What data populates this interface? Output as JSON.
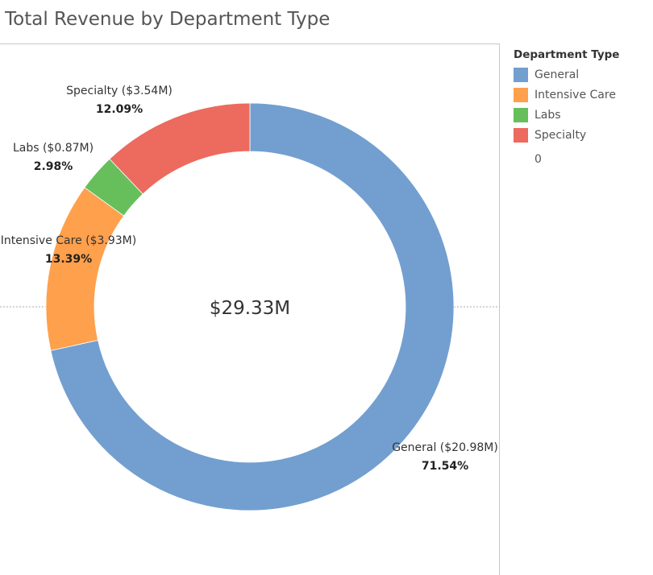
{
  "title": "Total Revenue by Department Type",
  "legend": {
    "title": "Department Type",
    "extra": "0"
  },
  "chart_data": {
    "type": "pie",
    "donut": true,
    "title": "Total Revenue by Department Type",
    "center_label": "$29.33M",
    "start_angle_deg": 0,
    "slices": [
      {
        "name": "General",
        "value": 20.98,
        "value_label": "General ($20.98M)",
        "percent": 71.54,
        "percent_label": "71.54%",
        "color": "#729fcf"
      },
      {
        "name": "Intensive Care",
        "value": 3.93,
        "value_label": "Intensive Care ($3.93M)",
        "percent": 13.39,
        "percent_label": "13.39%",
        "color": "#ffa04c"
      },
      {
        "name": "Labs",
        "value": 0.87,
        "value_label": "Labs ($0.87M)",
        "percent": 2.98,
        "percent_label": "2.98%",
        "color": "#66bf5b"
      },
      {
        "name": "Specialty",
        "value": 3.54,
        "value_label": "Specialty ($3.54M)",
        "percent": 12.09,
        "percent_label": "12.09%",
        "color": "#ec6a5e"
      }
    ],
    "legend_position": "right"
  }
}
